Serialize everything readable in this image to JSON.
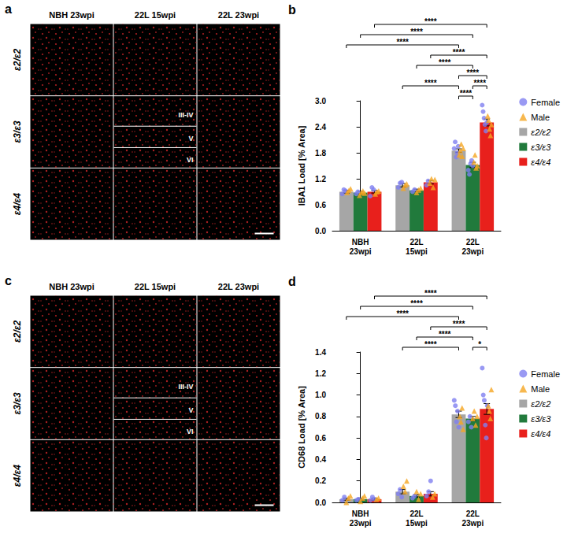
{
  "image_panels": [
    {
      "label": "a",
      "columns": [
        "NBH 23wpi",
        "22L 15wpi",
        "22L 23wpi"
      ],
      "rows": [
        "ε2/ε2",
        "ε3/ε3",
        "ε4/ε4"
      ],
      "layers": [
        "III-IV",
        "V",
        "VI"
      ],
      "layer_cell": [
        1,
        1
      ]
    },
    {
      "label": "c",
      "columns": [
        "NBH 23wpi",
        "22L 15wpi",
        "22L 23wpi"
      ],
      "rows": [
        "ε2/ε2",
        "ε3/ε3",
        "ε4/ε4"
      ],
      "layers": [
        "III-IV",
        "V",
        "VI"
      ],
      "layer_cell": [
        1,
        1
      ]
    }
  ],
  "chart_data": [
    {
      "label": "b",
      "type": "bar",
      "y_label": "IBA1 Load [% Area]",
      "categories": [
        "NBH 23wpi",
        "22L 15wpi",
        "22L 23wpi"
      ],
      "ylim": [
        0,
        3.0
      ],
      "yticks": [
        {
          "value": 0,
          "label": "0.0"
        },
        {
          "value": 0.6,
          "label": "0.6"
        },
        {
          "value": 1.2,
          "label": "1.2"
        },
        {
          "value": 1.8,
          "label": "1.8"
        },
        {
          "value": 2.4,
          "label": "2.4"
        },
        {
          "value": 3.0,
          "label": "3.0"
        }
      ],
      "grid": false,
      "legend": "right",
      "markers": [
        {
          "name": "Female",
          "color": "#8080f0",
          "marker": "circle"
        },
        {
          "name": "Male",
          "color": "#f5a623",
          "marker": "triangle"
        }
      ],
      "series": [
        {
          "name": "ε2/ε2",
          "color": "#a6a6a6",
          "values": [
            0.9,
            1.05,
            1.85
          ],
          "errors": [
            0.03,
            0.04,
            0.04
          ],
          "points": {
            "Female": [
              [
                0.85,
                0.95,
                0.92
              ],
              [
                1.0,
                1.1,
                1.12
              ],
              [
                1.9,
                2.05,
                1.7,
                1.8,
                1.95
              ]
            ],
            "Male": [
              [
                0.88,
                0.93,
                0.97
              ],
              [
                0.98,
                1.05,
                1.08
              ],
              [
                1.75,
                1.85,
                2.0,
                1.72,
                1.9
              ]
            ]
          }
        },
        {
          "name": "ε3/ε3",
          "color": "#217a3c",
          "values": [
            0.88,
            0.93,
            1.52
          ],
          "errors": [
            0.03,
            0.03,
            0.06
          ],
          "points": {
            "Female": [
              [
                0.85,
                0.9
              ],
              [
                0.9,
                0.95
              ],
              [
                1.4,
                1.3,
                1.55,
                1.62,
                1.5
              ]
            ],
            "Male": [
              [
                0.82,
                0.88,
                0.92,
                0.87
              ],
              [
                0.88,
                0.94,
                0.98
              ],
              [
                1.58,
                1.75,
                1.45,
                1.5
              ]
            ]
          }
        },
        {
          "name": "ε4/ε4",
          "color": "#e8201c",
          "values": [
            0.9,
            1.12,
            2.5
          ],
          "errors": [
            0.03,
            0.04,
            0.08
          ],
          "points": {
            "Female": [
              [
                0.8,
                1.0,
                0.95
              ],
              [
                1.05,
                1.15
              ],
              [
                2.9,
                2.75,
                2.6,
                2.45,
                2.3,
                2.5
              ]
            ],
            "Male": [
              [
                0.85,
                0.9,
                0.92
              ],
              [
                1.1,
                1.2,
                1.0,
                1.18
              ],
              [
                2.65,
                2.55,
                2.35,
                2.2,
                2.45
              ]
            ]
          }
        }
      ],
      "annotations": [
        {
          "from": [
            0,
            0
          ],
          "to": [
            2,
            0
          ],
          "label": "****"
        },
        {
          "from": [
            0,
            1
          ],
          "to": [
            2,
            1
          ],
          "label": "****"
        },
        {
          "from": [
            0,
            2
          ],
          "to": [
            2,
            2
          ],
          "label": "****"
        },
        {
          "from": [
            1,
            0
          ],
          "to": [
            2,
            0
          ],
          "label": "****"
        },
        {
          "from": [
            1,
            1
          ],
          "to": [
            2,
            1
          ],
          "label": "****"
        },
        {
          "from": [
            1,
            2
          ],
          "to": [
            2,
            2
          ],
          "label": "****"
        },
        {
          "from": [
            2,
            0
          ],
          "to": [
            2,
            1
          ],
          "label": "****"
        },
        {
          "from": [
            2,
            1
          ],
          "to": [
            2,
            2
          ],
          "label": "****"
        },
        {
          "from": [
            2,
            0
          ],
          "to": [
            2,
            2
          ],
          "label": "****"
        }
      ]
    },
    {
      "label": "d",
      "type": "bar",
      "y_label": "CD68 Load [% Area]",
      "categories": [
        "NBH 23wpi",
        "22L 15wpi",
        "22L 23wpi"
      ],
      "ylim": [
        0,
        1.4
      ],
      "yticks": [
        {
          "value": 0,
          "label": "0.0"
        },
        {
          "value": 0.2,
          "label": "0.2"
        },
        {
          "value": 0.4,
          "label": "0.4"
        },
        {
          "value": 0.6,
          "label": "0.6"
        },
        {
          "value": 0.8,
          "label": "0.8"
        },
        {
          "value": 1.0,
          "label": "1.0"
        },
        {
          "value": 1.2,
          "label": "1.2"
        },
        {
          "value": 1.4,
          "label": "1.4"
        }
      ],
      "grid": false,
      "legend": "right",
      "markers": [
        {
          "name": "Female",
          "color": "#8080f0",
          "marker": "circle"
        },
        {
          "name": "Male",
          "color": "#f5a623",
          "marker": "triangle"
        }
      ],
      "series": [
        {
          "name": "ε2/ε2",
          "color": "#a6a6a6",
          "values": [
            0.03,
            0.1,
            0.82
          ],
          "errors": [
            0.01,
            0.02,
            0.03
          ],
          "points": {
            "Female": [
              [
                0.02,
                0.05
              ],
              [
                0.08,
                0.12,
                0.05
              ],
              [
                0.95,
                0.9,
                0.75,
                0.85,
                0.7
              ]
            ],
            "Male": [
              [
                0.0,
                0.04,
                0.06
              ],
              [
                0.15,
                0.1,
                0.2
              ],
              [
                0.8,
                0.75,
                0.88,
                0.68
              ]
            ]
          }
        },
        {
          "name": "ε3/ε3",
          "color": "#217a3c",
          "values": [
            0.03,
            0.06,
            0.78
          ],
          "errors": [
            0.01,
            0.01,
            0.02
          ],
          "points": {
            "Female": [
              [
                0.02,
                0.03
              ],
              [
                0.04,
                0.06
              ],
              [
                0.75,
                0.8,
                0.7
              ]
            ],
            "Male": [
              [
                0.01,
                0.04,
                0.06
              ],
              [
                0.1,
                0.03,
                0.08
              ],
              [
                0.78,
                0.85,
                0.72,
                0.8
              ]
            ]
          }
        },
        {
          "name": "ε4/ε4",
          "color": "#e8201c",
          "values": [
            0.03,
            0.08,
            0.87
          ],
          "errors": [
            0.01,
            0.02,
            0.05
          ],
          "points": {
            "Female": [
              [
                0.02,
                0.05,
                0.03
              ],
              [
                0.06,
                0.1,
                0.2
              ],
              [
                1.25,
                1.0,
                0.95,
                0.72,
                0.6,
                0.9
              ]
            ],
            "Male": [
              [
                0.03,
                0.04
              ],
              [
                0.05,
                0.08
              ],
              [
                0.9,
                0.85,
                0.78,
                1.05
              ]
            ]
          }
        }
      ],
      "annotations": [
        {
          "from": [
            0,
            0
          ],
          "to": [
            2,
            0
          ],
          "label": "****"
        },
        {
          "from": [
            0,
            1
          ],
          "to": [
            2,
            1
          ],
          "label": "****"
        },
        {
          "from": [
            0,
            2
          ],
          "to": [
            2,
            2
          ],
          "label": "****"
        },
        {
          "from": [
            1,
            0
          ],
          "to": [
            2,
            0
          ],
          "label": "****"
        },
        {
          "from": [
            1,
            1
          ],
          "to": [
            2,
            1
          ],
          "label": "****"
        },
        {
          "from": [
            1,
            2
          ],
          "to": [
            2,
            2
          ],
          "label": "****"
        },
        {
          "from": [
            2,
            1
          ],
          "to": [
            2,
            2
          ],
          "label": "*"
        }
      ]
    }
  ]
}
